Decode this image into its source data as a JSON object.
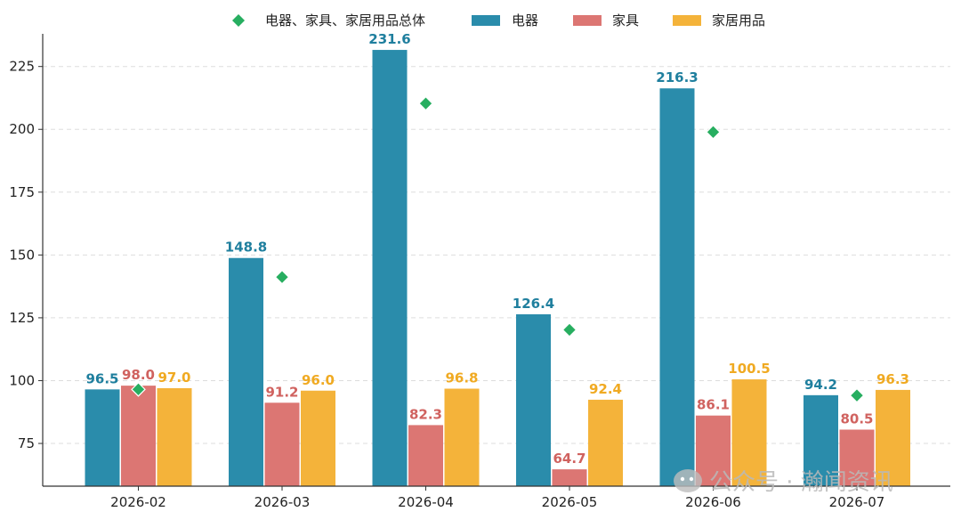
{
  "chart_data": {
    "type": "bar",
    "categories": [
      "2026-02",
      "2026-03",
      "2026-04",
      "2026-05",
      "2026-06",
      "2026-07"
    ],
    "series": [
      {
        "name": "电器",
        "kind": "bar",
        "color": "#2a8cab",
        "label_color": "#1f7f9e",
        "values": [
          96.5,
          148.8,
          231.6,
          126.4,
          216.3,
          94.2
        ]
      },
      {
        "name": "家具",
        "kind": "bar",
        "color": "#dc7673",
        "label_color": "#d0625f",
        "values": [
          98.0,
          91.2,
          82.3,
          64.7,
          86.1,
          80.5
        ]
      },
      {
        "name": "家居用品",
        "kind": "bar",
        "color": "#f4b33a",
        "label_color": "#f0aa22",
        "values": [
          97.0,
          96.0,
          96.8,
          92.4,
          100.5,
          96.3
        ]
      },
      {
        "name": "电器、家具、家居用品总体",
        "kind": "scatter",
        "marker": "diamond",
        "color": "#27ae60",
        "values": [
          96.5,
          141.2,
          210.3,
          120.2,
          198.9,
          94.1
        ]
      }
    ],
    "legend_order": [
      3,
      0,
      1,
      2
    ],
    "legend_position": "top-center",
    "ylim": [
      58,
      238
    ],
    "yticks": [
      75,
      100,
      125,
      150,
      175,
      200,
      225
    ],
    "grid": "y-dashed",
    "xlabel": "",
    "ylabel": ""
  },
  "watermark": {
    "text": "公众号 · 瀚闻资讯",
    "icon": "wechat-icon"
  }
}
